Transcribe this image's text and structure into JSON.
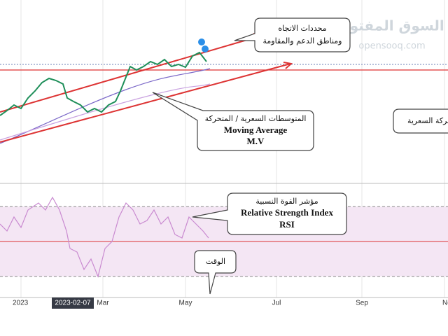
{
  "watermark": {
    "arabic": "السوق المفتوح",
    "latin": "opensooq.com"
  },
  "annotations": {
    "trend": {
      "line1": "محددات الاتجاه",
      "line2": "ومناطق الدعم والمقاومة"
    },
    "moving_average": {
      "line1": "المتوسطات السعرية / المتحركة",
      "line2": "Moving Average",
      "line3": "M.V"
    },
    "price_action": {
      "line1": "حركة السعرية"
    },
    "rsi": {
      "line1": "مؤشر القوة النسبية",
      "line2": "Relative Strength Index",
      "line3": "RSI"
    },
    "time": {
      "line1": "الوقت"
    }
  },
  "x_axis": {
    "labels": [
      "2023",
      "2023-02-07",
      "Mar",
      "May",
      "Jul",
      "Sep",
      "No"
    ]
  }
}
